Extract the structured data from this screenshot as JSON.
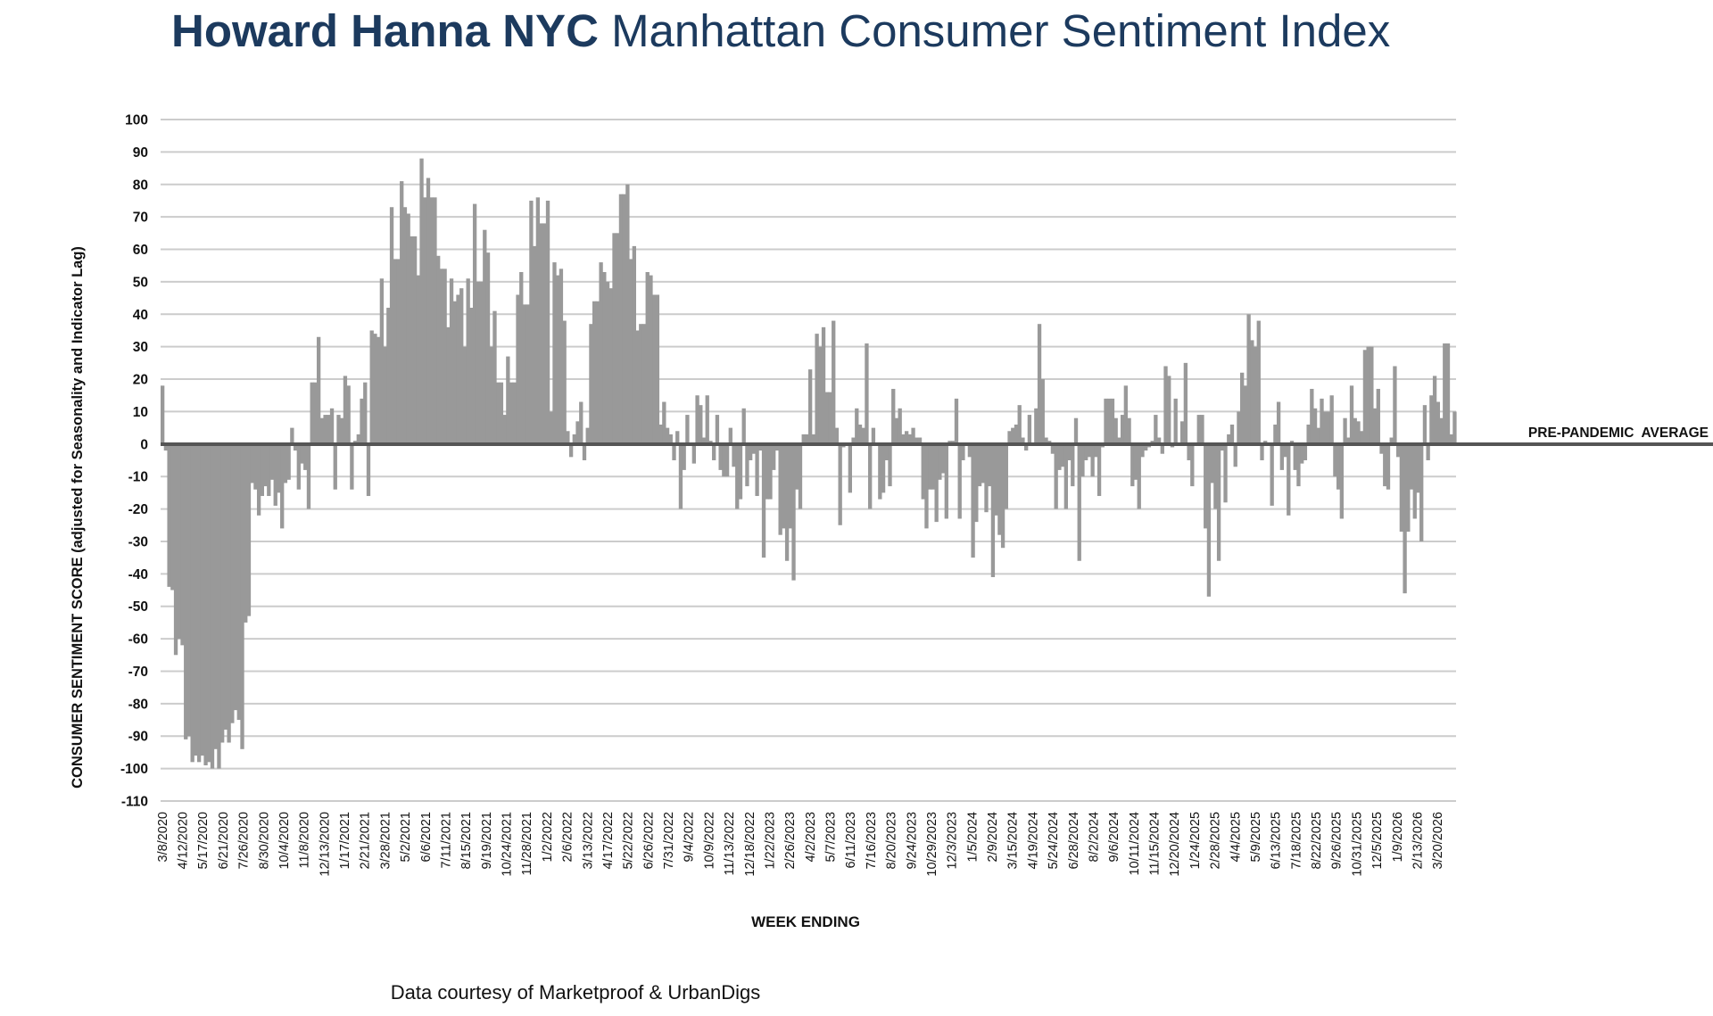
{
  "title": {
    "bold": "Howard Hanna NYC",
    "rest": "Manhattan Consumer Sentiment Index"
  },
  "colors": {
    "title": "#1c3a5e",
    "bars": "#999999",
    "grid": "#cccccc",
    "baseline": "#555555"
  },
  "footer": "Data courtesy of Marketproof & UrbanDigs",
  "chart_data": {
    "type": "bar",
    "ylabel": "CONSUMER SENTIMENT SCORE (adjusted for Seasonality and Indicator Lag)",
    "xlabel": "WEEK ENDING",
    "ylim": [
      -110,
      100
    ],
    "yticks": [
      100,
      90,
      80,
      70,
      60,
      50,
      40,
      30,
      20,
      10,
      0,
      -10,
      -20,
      -30,
      -40,
      -50,
      -60,
      -70,
      -80,
      -90,
      -100,
      -110
    ],
    "grid": true,
    "reference_line": {
      "label": "PRE-PANDEMIC  AVERAGE",
      "value": 0
    },
    "x_tick_labels": [
      "3/8/2020",
      "4/12/2020",
      "5/17/2020",
      "6/21/2020",
      "7/26/2020",
      "8/30/2020",
      "10/4/2020",
      "11/8/2020",
      "12/13/2020",
      "1/17/2021",
      "2/21/2021",
      "3/28/2021",
      "5/2/2021",
      "6/6/2021",
      "7/11/2021",
      "8/15/2021",
      "9/19/2021",
      "10/24/2021",
      "11/28/2021",
      "1/2/2022",
      "2/6/2022",
      "3/13/2022",
      "4/17/2022",
      "5/22/2022",
      "6/26/2022",
      "7/31/2022",
      "9/4/2022",
      "10/9/2022",
      "11/13/2022",
      "12/18/2022",
      "1/22/2023",
      "2/26/2023",
      "4/2/2023",
      "5/7/2023",
      "6/11/2023",
      "7/16/2023",
      "8/20/2023",
      "9/24/2023",
      "10/29/2023",
      "12/3/2023",
      "1/5/2024",
      "2/9/2024",
      "3/15/2024",
      "4/19/2024",
      "5/24/2024",
      "6/28/2024",
      "8/2/2024",
      "9/6/2024",
      "10/11/2024",
      "11/15/2024",
      "12/20/2024",
      "1/24/2025",
      "2/28/2025",
      "4/4/2025",
      "5/9/2025",
      "6/13/2025",
      "7/18/2025",
      "8/22/2025",
      "9/26/2025",
      "10/31/2025",
      "12/5/2025",
      "1/9/2026",
      "2/13/2026",
      "3/20/2026"
    ],
    "series": [
      {
        "values": [
          18,
          -2,
          -44,
          -45,
          -65,
          -60,
          -62,
          -91,
          -90,
          -98,
          -96,
          -98,
          -96,
          -99,
          -98,
          -100,
          -94,
          -100,
          -92,
          -88,
          -92,
          -86,
          -82,
          -85,
          -94,
          -55,
          -53,
          -12,
          -14,
          -22,
          -16,
          -13,
          -16,
          -11,
          -19,
          -15,
          -26,
          -12,
          -11,
          5,
          -2,
          -14,
          -6,
          -8,
          -20,
          19,
          19,
          33,
          8,
          9,
          9,
          11,
          -14,
          9,
          8,
          21,
          18,
          -14,
          1,
          3,
          14,
          19,
          -16,
          35,
          34,
          33,
          51,
          30,
          42,
          73,
          57,
          57,
          81,
          73,
          71,
          64,
          64,
          52,
          88,
          76,
          82,
          76,
          76,
          58,
          54,
          54,
          36,
          51,
          44,
          46,
          48,
          30,
          51,
          42,
          74,
          50,
          50,
          66,
          59,
          30,
          41,
          19,
          19,
          9,
          27,
          19,
          19,
          46,
          53,
          43,
          43,
          75,
          61,
          76,
          68,
          68,
          75,
          10,
          56,
          52,
          54,
          38,
          4,
          -4,
          3,
          7,
          13,
          -5,
          5,
          37,
          44,
          44,
          56,
          53,
          50,
          48,
          65,
          65,
          77,
          77,
          80,
          57,
          61,
          35,
          37,
          37,
          53,
          52,
          46,
          46,
          6,
          13,
          5,
          3,
          -5,
          4,
          -20,
          -8,
          9,
          0,
          -6,
          15,
          12,
          2,
          15,
          1,
          -5,
          9,
          -8,
          -10,
          -10,
          5,
          -7,
          -20,
          -17,
          11,
          -13,
          -5,
          -3,
          -16,
          -2,
          -35,
          -17,
          -17,
          -8,
          -2,
          -28,
          -26,
          -36,
          -26,
          -42,
          -14,
          -20,
          3,
          3,
          23,
          3,
          34,
          30,
          36,
          16,
          16,
          38,
          5,
          -25,
          -1,
          0,
          -15,
          2,
          11,
          6,
          5,
          31,
          -20,
          5,
          0,
          -17,
          -15,
          -5,
          -13,
          17,
          8,
          11,
          3,
          4,
          3,
          5,
          2,
          2,
          -17,
          -26,
          -14,
          -14,
          -24,
          -11,
          -9,
          -23,
          1,
          1,
          14,
          -23,
          -5,
          0,
          -4,
          -35,
          -24,
          -13,
          -12,
          -21,
          -13,
          -41,
          -22,
          -28,
          -32,
          -20,
          4,
          5,
          6,
          12,
          2,
          -2,
          9,
          0,
          11,
          37,
          20,
          2,
          1,
          -3,
          -20,
          -8,
          -7,
          -20,
          -5,
          -13,
          8,
          -36,
          -10,
          -5,
          -4,
          -10,
          -4,
          -16,
          -1,
          14,
          14,
          14,
          8,
          2,
          9,
          18,
          8,
          -13,
          -11,
          -20,
          -4,
          -2,
          -1,
          1,
          9,
          2,
          -3,
          24,
          21,
          -1,
          14,
          0,
          7,
          25,
          -5,
          -13,
          0,
          9,
          9,
          -26,
          -47,
          -12,
          -20,
          -36,
          -2,
          -18,
          3,
          6,
          -7,
          10,
          22,
          18,
          40,
          32,
          30,
          38,
          -5,
          1,
          0,
          -19,
          6,
          13,
          -8,
          -4,
          -22,
          1,
          -8,
          -13,
          -6,
          -5,
          6,
          17,
          11,
          5,
          14,
          10,
          10,
          15,
          -10,
          -14,
          -23,
          8,
          2,
          18,
          8,
          7,
          4,
          29,
          30,
          30,
          11,
          17,
          -3,
          -13,
          -14,
          2,
          24,
          -4,
          -27,
          -46,
          -27,
          -14,
          -23,
          -15,
          -30,
          12,
          -5,
          15,
          21,
          13,
          8,
          31,
          31,
          3,
          10
        ]
      }
    ]
  }
}
